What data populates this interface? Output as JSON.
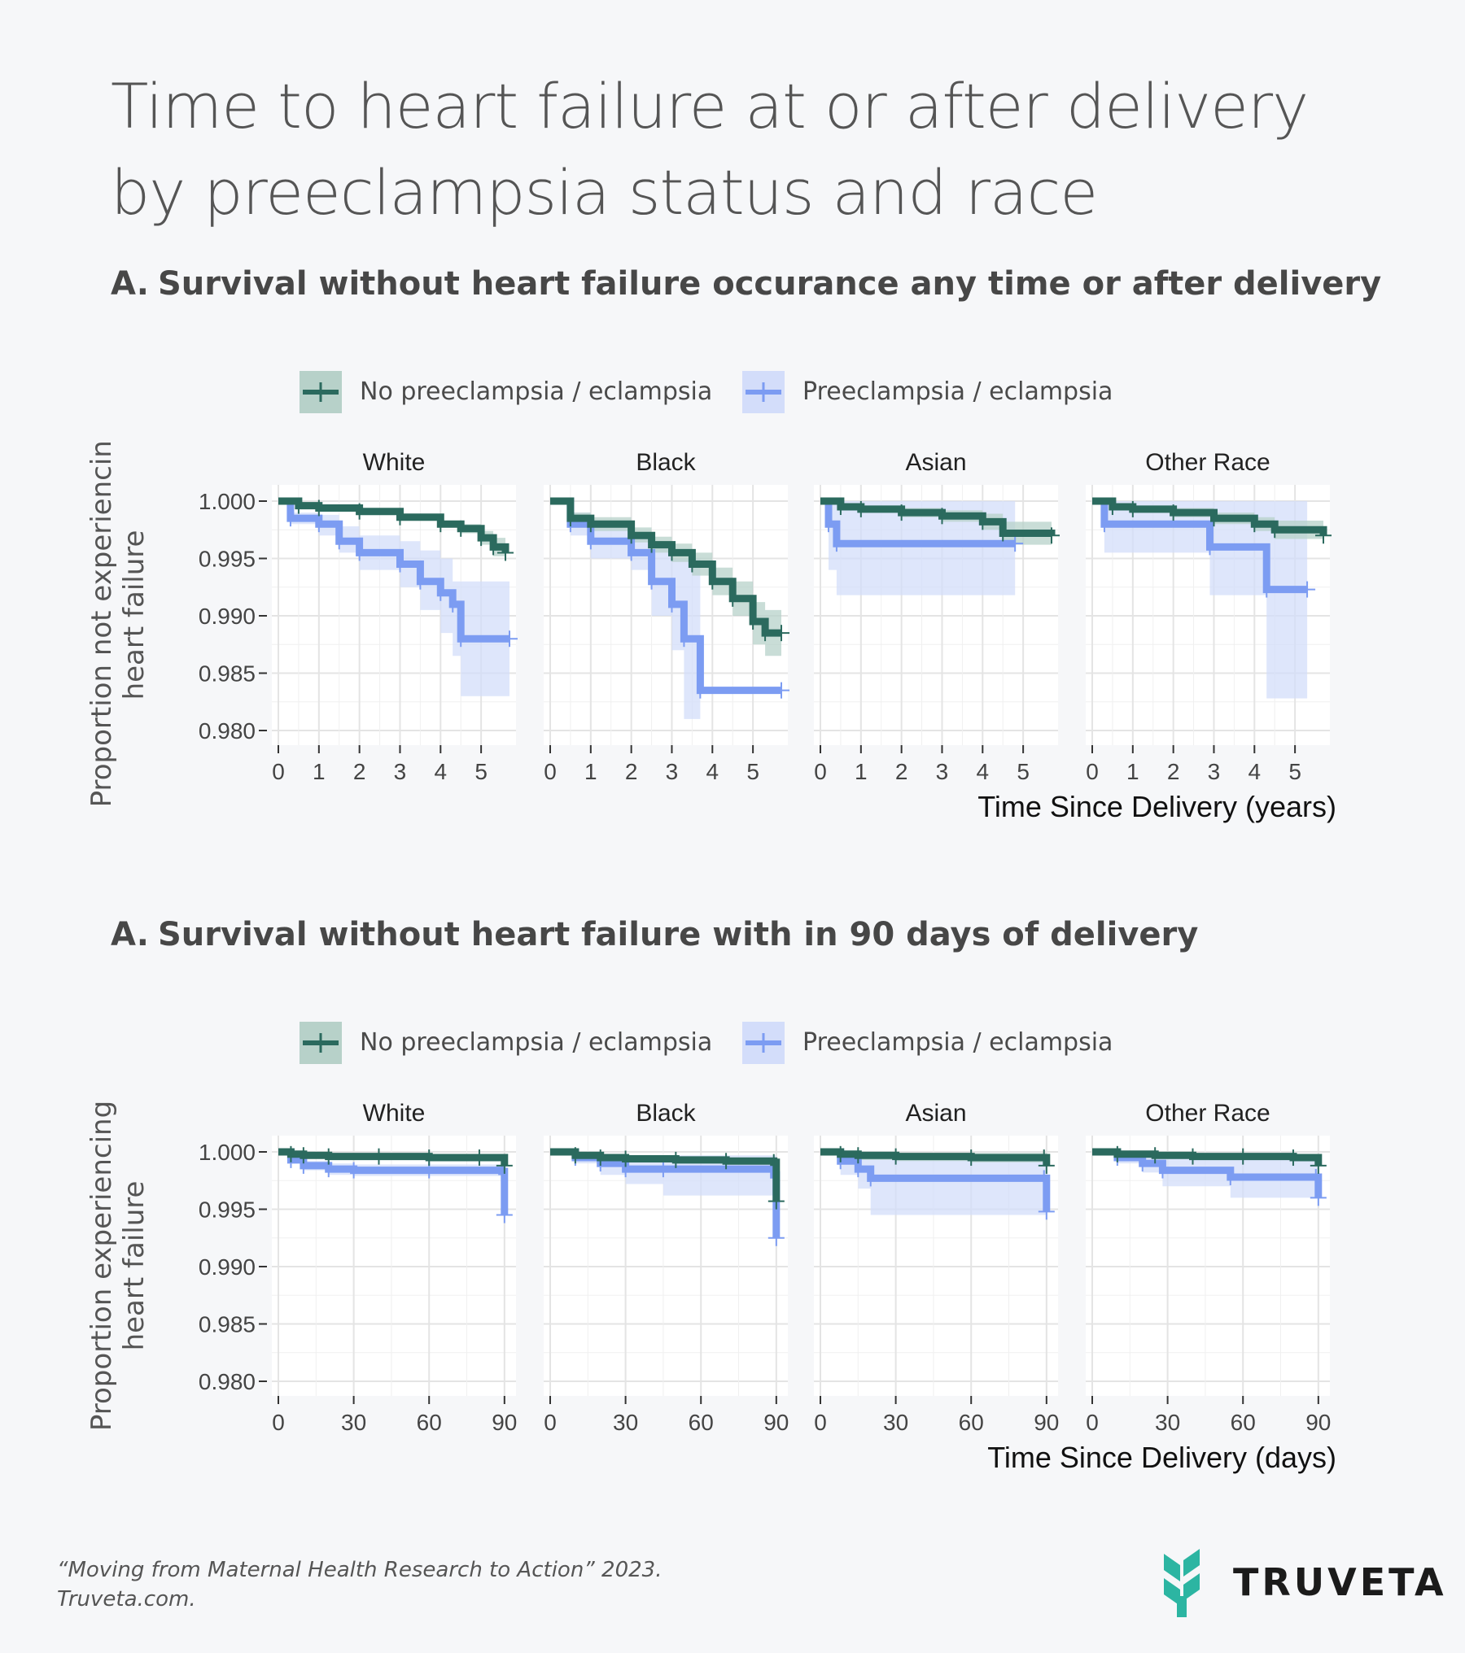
{
  "title": {
    "line1": "Time to heart failure at or after delivery",
    "line2": "by preeclampsia status and race"
  },
  "colors": {
    "no_preeclampsia": "#2b6a5e",
    "no_preeclampsia_band": "#b7d1c9",
    "preeclampsia": "#7c9cf2",
    "preeclampsia_band": "#d3ddfa",
    "brand_teal": "#2cb5a2"
  },
  "legend": {
    "no_preeclampsia": "No preeclampsia / eclampsia",
    "preeclampsia": "Preeclampsia / eclampsia"
  },
  "sections": [
    {
      "letter": "A.",
      "heading": "Survival without heart failure occurance any time or after delivery"
    },
    {
      "letter": "A.",
      "heading": "Survival without heart failure with in 90 days of delivery"
    }
  ],
  "chart_data": [
    {
      "type": "line",
      "title": "Survival without heart failure occurance any time or after delivery",
      "xlabel": "Time Since Delivery (years)",
      "ylabel_lines": [
        "Proportion not experiencing",
        "heart failure"
      ],
      "ylim": [
        0.98,
        1.0
      ],
      "xlim": [
        0,
        5.7
      ],
      "x_ticks": [
        0,
        1,
        2,
        3,
        4,
        5
      ],
      "x_tick_labels": [
        "0",
        "1",
        "2",
        "3",
        "4",
        "5"
      ],
      "y_ticks": [
        1.0,
        0.995,
        0.99,
        0.985,
        0.98
      ],
      "y_tick_labels": [
        "1.000",
        "0.995",
        "0.990",
        "0.985",
        "0.980"
      ],
      "panels": [
        {
          "name": "White",
          "series": [
            {
              "name": "No preeclampsia / eclampsia",
              "x": [
                0,
                0.5,
                1,
                2,
                3,
                4,
                4.5,
                5,
                5.3,
                5.6
              ],
              "y": [
                1.0,
                0.9996,
                0.9994,
                0.9991,
                0.9986,
                0.998,
                0.9976,
                0.9968,
                0.996,
                0.9955
              ],
              "lower": [
                1.0,
                0.9995,
                0.9993,
                0.999,
                0.9984,
                0.9977,
                0.9972,
                0.9962,
                0.9952,
                0.9946
              ],
              "upper": [
                1.0,
                0.9997,
                0.9995,
                0.9992,
                0.9988,
                0.9983,
                0.998,
                0.9974,
                0.9968,
                0.9964
              ]
            },
            {
              "name": "Preeclampsia / eclampsia",
              "x": [
                0,
                0.3,
                1,
                1.5,
                2,
                3,
                3.5,
                4,
                4.3,
                4.5,
                5.7
              ],
              "y": [
                1.0,
                0.9985,
                0.998,
                0.9965,
                0.9955,
                0.9945,
                0.993,
                0.992,
                0.991,
                0.988,
                0.988
              ],
              "lower": [
                1.0,
                0.998,
                0.997,
                0.9955,
                0.994,
                0.9925,
                0.9905,
                0.9885,
                0.9865,
                0.983,
                0.983
              ],
              "upper": [
                1.0,
                0.999,
                0.9988,
                0.9978,
                0.997,
                0.9965,
                0.9957,
                0.995,
                0.993,
                0.993,
                0.993
              ]
            }
          ]
        },
        {
          "name": "Black",
          "series": [
            {
              "name": "No preeclampsia / eclampsia",
              "x": [
                0,
                0.5,
                1,
                2,
                2.5,
                3,
                3.5,
                4,
                4.5,
                5,
                5.3,
                5.7
              ],
              "y": [
                1.0,
                0.9985,
                0.998,
                0.997,
                0.9962,
                0.9955,
                0.9945,
                0.993,
                0.9915,
                0.9895,
                0.9885,
                0.9885
              ],
              "lower": [
                1.0,
                0.998,
                0.9974,
                0.9964,
                0.9955,
                0.9947,
                0.9935,
                0.9918,
                0.99,
                0.9875,
                0.9865,
                0.9865
              ],
              "upper": [
                1.0,
                0.999,
                0.9986,
                0.9977,
                0.9969,
                0.9963,
                0.9955,
                0.9942,
                0.993,
                0.9912,
                0.9905,
                0.9905
              ]
            },
            {
              "name": "Preeclampsia / eclampsia",
              "x": [
                0,
                0.5,
                1,
                2,
                2.5,
                3,
                3.3,
                3.7,
                5.7
              ],
              "y": [
                1.0,
                0.998,
                0.9965,
                0.9955,
                0.993,
                0.991,
                0.988,
                0.9835,
                0.9835
              ],
              "lower": [
                1.0,
                0.997,
                0.995,
                0.994,
                0.99,
                0.987,
                0.981,
                0.9835,
                0.9835
              ],
              "upper": [
                1.0,
                0.999,
                0.998,
                0.997,
                0.996,
                0.995,
                0.995,
                0.9835,
                0.9835
              ]
            }
          ]
        },
        {
          "name": "Asian",
          "series": [
            {
              "name": "No preeclampsia / eclampsia",
              "x": [
                0,
                0.5,
                1,
                2,
                3,
                4,
                4.5,
                5.7
              ],
              "y": [
                1.0,
                0.9995,
                0.9993,
                0.999,
                0.9987,
                0.9982,
                0.9972,
                0.997
              ],
              "lower": [
                1.0,
                0.9992,
                0.999,
                0.9986,
                0.9982,
                0.9975,
                0.9962,
                0.996
              ],
              "upper": [
                1.0,
                0.9998,
                0.9996,
                0.9994,
                0.9992,
                0.9989,
                0.9982,
                0.998
              ]
            },
            {
              "name": "Preeclampsia / eclampsia",
              "x": [
                0,
                0.2,
                0.4,
                4.8
              ],
              "y": [
                1.0,
                0.998,
                0.9963,
                0.9963
              ],
              "lower": [
                1.0,
                0.994,
                0.9918,
                0.9918
              ],
              "upper": [
                1.0,
                1.0,
                1.0,
                1.0
              ]
            }
          ]
        },
        {
          "name": "Other Race",
          "series": [
            {
              "name": "No preeclampsia / eclampsia",
              "x": [
                0,
                0.5,
                1,
                2,
                3,
                4,
                4.5,
                5.7
              ],
              "y": [
                1.0,
                0.9995,
                0.9993,
                0.999,
                0.9985,
                0.998,
                0.9975,
                0.997
              ],
              "lower": [
                1.0,
                0.9992,
                0.999,
                0.9986,
                0.998,
                0.9974,
                0.9967,
                0.996
              ],
              "upper": [
                1.0,
                0.9998,
                0.9996,
                0.9994,
                0.999,
                0.9986,
                0.9983,
                0.998
              ]
            },
            {
              "name": "Preeclampsia / eclampsia",
              "x": [
                0,
                0.3,
                2.9,
                4.3,
                5.3
              ],
              "y": [
                1.0,
                0.998,
                0.996,
                0.9923,
                0.9923
              ],
              "lower": [
                1.0,
                0.9955,
                0.9918,
                0.9828,
                0.9828
              ],
              "upper": [
                1.0,
                1.0,
                1.0,
                1.0,
                1.0
              ]
            }
          ]
        }
      ]
    },
    {
      "type": "line",
      "title": "Survival without heart failure with in 90 days of delivery",
      "xlabel": "Time Since Delivery (days)",
      "ylabel_lines": [
        "Proportion experiencing",
        "heart failure"
      ],
      "ylim": [
        0.98,
        1.0
      ],
      "xlim": [
        0,
        92
      ],
      "x_ticks": [
        0,
        30,
        60,
        90
      ],
      "x_tick_labels": [
        "0",
        "30",
        "60",
        "90"
      ],
      "y_ticks": [
        1.0,
        0.995,
        0.99,
        0.985,
        0.98
      ],
      "y_tick_labels": [
        "1.000",
        "0.995",
        "0.990",
        "0.985",
        "0.980"
      ],
      "panels": [
        {
          "name": "White",
          "series": [
            {
              "name": "No preeclampsia / eclampsia",
              "x": [
                0,
                5,
                10,
                20,
                40,
                60,
                80,
                90
              ],
              "y": [
                1.0,
                0.9998,
                0.9997,
                0.9996,
                0.9996,
                0.9995,
                0.9995,
                0.9988
              ],
              "lower": [
                1.0,
                0.9997,
                0.9996,
                0.9995,
                0.9995,
                0.9994,
                0.9994,
                0.9985
              ],
              "upper": [
                1.0,
                0.9999,
                0.9998,
                0.9997,
                0.9997,
                0.9996,
                0.9996,
                0.9991
              ]
            },
            {
              "name": "Preeclampsia / eclampsia",
              "x": [
                0,
                5,
                10,
                20,
                30,
                60,
                89,
                90
              ],
              "y": [
                1.0,
                0.9993,
                0.9988,
                0.9985,
                0.9984,
                0.9984,
                0.9983,
                0.9945
              ],
              "lower": [
                1.0,
                0.999,
                0.9984,
                0.998,
                0.9979,
                0.9979,
                0.9978,
                0.9945
              ],
              "upper": [
                1.0,
                0.9996,
                0.9992,
                0.999,
                0.9989,
                0.9989,
                0.9988,
                0.9945
              ]
            }
          ]
        },
        {
          "name": "Black",
          "series": [
            {
              "name": "No preeclampsia / eclampsia",
              "x": [
                0,
                10,
                20,
                30,
                50,
                70,
                89,
                90
              ],
              "y": [
                1.0,
                0.9997,
                0.9995,
                0.9994,
                0.9993,
                0.9992,
                0.9991,
                0.9957
              ],
              "lower": [
                1.0,
                0.9995,
                0.9993,
                0.9992,
                0.9991,
                0.999,
                0.9989,
                0.9957
              ],
              "upper": [
                1.0,
                0.9999,
                0.9997,
                0.9996,
                0.9995,
                0.9994,
                0.9993,
                0.9957
              ]
            },
            {
              "name": "Preeclampsia / eclampsia",
              "x": [
                0,
                10,
                20,
                30,
                45,
                89,
                90
              ],
              "y": [
                1.0,
                0.9995,
                0.999,
                0.9985,
                0.9985,
                0.998,
                0.9925
              ],
              "lower": [
                1.0,
                0.999,
                0.998,
                0.9972,
                0.9962,
                0.9962,
                0.9925
              ],
              "upper": [
                1.0,
                1.0,
                0.9998,
                0.9997,
                0.9997,
                0.9997,
                0.9925
              ]
            }
          ]
        },
        {
          "name": "Asian",
          "series": [
            {
              "name": "No preeclampsia / eclampsia",
              "x": [
                0,
                8,
                15,
                30,
                60,
                89,
                90
              ],
              "y": [
                1.0,
                0.9998,
                0.9997,
                0.9996,
                0.9995,
                0.9995,
                0.9988
              ],
              "lower": [
                1.0,
                0.9995,
                0.9993,
                0.9992,
                0.9991,
                0.9991,
                0.9984
              ],
              "upper": [
                1.0,
                1.0,
                1.0,
                0.9999,
                0.9999,
                0.9999,
                0.9992
              ]
            },
            {
              "name": "Preeclampsia / eclampsia",
              "x": [
                0,
                8,
                15,
                20,
                89,
                90
              ],
              "y": [
                1.0,
                0.9992,
                0.9985,
                0.9977,
                0.9977,
                0.9948
              ],
              "lower": [
                1.0,
                0.998,
                0.9968,
                0.9945,
                0.9945,
                0.9948
              ],
              "upper": [
                1.0,
                1.0,
                1.0,
                0.9995,
                0.9995,
                0.9948
              ]
            }
          ]
        },
        {
          "name": "Other Race",
          "series": [
            {
              "name": "No preeclampsia / eclampsia",
              "x": [
                0,
                10,
                25,
                40,
                60,
                80,
                90
              ],
              "y": [
                1.0,
                0.9998,
                0.9997,
                0.9996,
                0.9996,
                0.9995,
                0.9988
              ],
              "lower": [
                1.0,
                0.9996,
                0.9995,
                0.9994,
                0.9994,
                0.9993,
                0.9985
              ],
              "upper": [
                1.0,
                1.0,
                0.9999,
                0.9998,
                0.9998,
                0.9997,
                0.9991
              ]
            },
            {
              "name": "Preeclampsia / eclampsia",
              "x": [
                0,
                10,
                20,
                28,
                55,
                89,
                90
              ],
              "y": [
                1.0,
                0.9995,
                0.999,
                0.9984,
                0.9978,
                0.9978,
                0.996
              ],
              "lower": [
                1.0,
                0.999,
                0.9982,
                0.997,
                0.996,
                0.996,
                0.996
              ],
              "upper": [
                1.0,
                1.0,
                0.9998,
                0.9995,
                0.9993,
                0.9993,
                0.996
              ]
            }
          ]
        }
      ]
    }
  ],
  "footer": {
    "citation_line1": "“Moving from Maternal Health Research to Action” 2023.",
    "citation_line2": "Truveta.com.",
    "brand": "TRUVETA"
  }
}
